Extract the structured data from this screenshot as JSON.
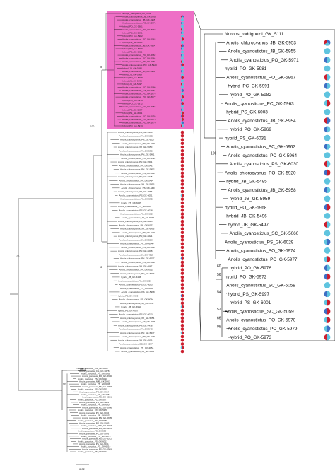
{
  "colors": {
    "red": "#cc1f2f",
    "blue": "#3f6fc4",
    "cyan": "#5fc4df",
    "highlight": "#ee6fc6",
    "branch": "#111111"
  },
  "tree_labels": {
    "root_support": "100",
    "clade_support": "100",
    "inner_support": "98",
    "porcatus_support": "100",
    "porcatus_inner": "99",
    "highlight_support": "98"
  },
  "scale_bar": "0.02",
  "highlight_clade": [
    {
      "label": "Norops_rodriguezii_GK_5111",
      "pie": null
    },
    {
      "label": "Anolis_chlorocyanus_JB_GK-5953",
      "pie": [
        "blue",
        "cyan",
        "red"
      ]
    },
    {
      "label": "Anolis_cyanostictus_JB_GK-5955",
      "pie": [
        "cyan"
      ]
    },
    {
      "label": "Anolis_cyanostictus_PO_GK-5971",
      "pie": [
        "cyan",
        "blue"
      ]
    },
    {
      "label": "hybrid_PO_GK-5981",
      "pie": [
        "cyan"
      ]
    },
    {
      "label": "Anolis_cyanostictus_PO_GK-5967",
      "pie": [
        "cyan",
        "red"
      ]
    },
    {
      "label": "hybrid_PC_GK-5991",
      "pie": [
        "cyan",
        "blue"
      ]
    },
    {
      "label": "hybrid_PO_GK-5982",
      "pie": [
        "cyan"
      ]
    },
    {
      "label": "Anolis_cyanostictus_PC_GK-5963",
      "pie": [
        "red",
        "cyan"
      ]
    },
    {
      "label": "hybrid_PS_GK-6003",
      "pie": [
        "cyan"
      ]
    },
    {
      "label": "Anolis_cyanostictus_JB_GK-5954",
      "pie": [
        "blue",
        "red"
      ]
    },
    {
      "label": "hybrid_PO_GK-5969",
      "pie": [
        "cyan",
        "blue"
      ]
    },
    {
      "label": "hybrid_PS_GK-6031",
      "pie": [
        "cyan"
      ]
    },
    {
      "label": "Anolis_cyanostictus_PC_GK-5962",
      "pie": [
        "cyan",
        "blue"
      ]
    },
    {
      "label": "Anolis_cyanostictus_PC_GK-5964",
      "pie": [
        "cyan"
      ]
    },
    {
      "label": "Anolis_cyanostictus_PS_GK-6030",
      "pie": [
        "cyan",
        "red"
      ]
    },
    {
      "label": "Anolis_chlorocyanus_PO_GK-5920",
      "pie": [
        "red",
        "blue"
      ]
    },
    {
      "label": "hybrid_JB_GK-5495",
      "pie": [
        "cyan"
      ]
    },
    {
      "label": "Anolis_cyanostictus_JB_GK-5958",
      "pie": [
        "cyan",
        "blue"
      ]
    },
    {
      "label": "hybrid_JB_GK-5959",
      "pie": [
        "cyan"
      ]
    },
    {
      "label": "hybrid_PO_GK-5968",
      "pie": [
        "red",
        "blue"
      ]
    },
    {
      "label": "hybrid_JB_GK-5496",
      "pie": [
        "cyan"
      ]
    },
    {
      "label": "hybrid_JB_GK-5497",
      "pie": [
        "cyan",
        "red"
      ]
    },
    {
      "label": "Anolis_cyanostictus_SC_GK-5060",
      "pie": [
        "cyan"
      ]
    },
    {
      "label": "Anolis_cyanostictus_PS_GK-6029",
      "pie": [
        "blue",
        "cyan"
      ]
    },
    {
      "label": "Anolis_cyanostictus_PO_GK-5974",
      "pie": [
        "cyan"
      ]
    },
    {
      "label": "Anolis_cyanostictus_PO_GK-5977",
      "pie": [
        "red",
        "cyan"
      ]
    },
    {
      "label": "hybrid_PO_GK-5976",
      "pie": [
        "cyan",
        "blue"
      ]
    },
    {
      "label": "hybrid_PO_GK-5972",
      "pie": [
        "red",
        "blue"
      ]
    },
    {
      "label": "Anolis_cyanostictus_SC_GK-5058",
      "pie": [
        "cyan"
      ]
    },
    {
      "label": "hybrid_PS_GK-5997",
      "pie": [
        "cyan",
        "blue"
      ]
    },
    {
      "label": "hybrid_PS_GK-6001",
      "pie": [
        "red",
        "cyan"
      ]
    },
    {
      "label": "Anolis_cyanostictus_SC_GK-5059",
      "pie": [
        "red",
        "blue"
      ]
    },
    {
      "label": "Anolis_cyanostictus_PO_GK-5970",
      "pie": [
        "red",
        "cyan"
      ]
    },
    {
      "label": "Anolis_cyanostictus_PO_GK-5979",
      "pie": [
        "blue",
        "cyan"
      ]
    },
    {
      "label": "hybrid_PO_GK-5973",
      "pie": [
        "cyan",
        "red"
      ]
    }
  ],
  "zoom_nodes": [
    {
      "label": "100",
      "row": 14
    },
    {
      "label": "60",
      "row": 27
    },
    {
      "label": "56",
      "row": 28
    },
    {
      "label": "54",
      "row": 30
    },
    {
      "label": "52",
      "row": 32
    },
    {
      "label": "66",
      "row": 33
    },
    {
      "label": "99",
      "row": 34
    }
  ],
  "chlorocyanus_clade": [
    {
      "label": "Anolis_chlorocyanus_PN_GK-5490",
      "pie": [
        "red"
      ]
    },
    {
      "label": "Anolis_chlorocyanus_PN_GK-6028",
      "pie": [
        "red"
      ]
    },
    {
      "label": "Anolis_chlorocyanus_PN_GK-6027",
      "pie": [
        "red"
      ]
    },
    {
      "label": "Anolis_chlorocyanus_PN_GK-6026",
      "pie": [
        "red"
      ]
    },
    {
      "label": "Anolis_chlorocyanus_XX_GK-5950",
      "pie": [
        "red"
      ]
    },
    {
      "label": "Anolis_chlorocyanus_PN_GK-5961",
      "pie": [
        "red"
      ]
    },
    {
      "label": "Anolis_chlorocyanus_PN_GK-5461",
      "pie": [
        "red"
      ]
    },
    {
      "label": "Anolis_chlorocyanus_PO_GK-4726",
      "pie": [
        "red"
      ]
    },
    {
      "label": "Anolis_chlorocyanus_PN_GK-5501",
      "pie": [
        "red"
      ]
    },
    {
      "label": "Anolis_chlorocyanus_PN_GK-5491",
      "pie": [
        "red"
      ]
    },
    {
      "label": "Anolis_chlorocyanus_PN_GK-5492",
      "pie": [
        "red"
      ]
    },
    {
      "label": "Anolis_chlorocyanus_PN_GK-6024",
      "pie": [
        "red"
      ]
    },
    {
      "label": "Anolis_chlorocyanus_PN_GK-6025",
      "pie": [
        "red"
      ]
    },
    {
      "label": "Anolis_chlorocyanus_PN_GK-5494",
      "pie": [
        "red"
      ]
    },
    {
      "label": "Anolis_chlorocyanus_XX_GK-5493",
      "pie": [
        "red"
      ]
    },
    {
      "label": "Anolis_chlorocyanus_PS_GK-5451",
      "pie": [
        "red"
      ]
    },
    {
      "label": "Anolis_chlorocyanus_XX_GK-4883",
      "pie": [
        "red"
      ]
    },
    {
      "label": "Anolis_cyanostictus_PS_GK-6051",
      "pie": [
        "red",
        "cyan"
      ]
    },
    {
      "label": "Anolis_cyanostictus_PS_GK-5953",
      "pie": [
        "red"
      ]
    },
    {
      "label": "hybrid_PS_GK-6005",
      "pie": [
        "red"
      ]
    },
    {
      "label": "Anolis_cyanostictus_PS_GK-6054",
      "pie": [
        "red"
      ]
    },
    {
      "label": "Anolis_cyanostictus_PS_GK-6038",
      "pie": [
        "red"
      ]
    },
    {
      "label": "Anolis_cyanostictus_PS_GK-6036",
      "pie": [
        "red"
      ]
    },
    {
      "label": "Anolis_cyanostictus_JB_GK-5975",
      "pie": [
        "red"
      ]
    },
    {
      "label": "Anolis_chlorocyanus_PN_GK-6023",
      "pie": [
        "red"
      ]
    },
    {
      "label": "Anolis_chlorocyanus_PN_GK-6022",
      "pie": [
        "red"
      ]
    },
    {
      "label": "Anolis_chlorocyanus_XX_GK-6496",
      "pie": [
        "red"
      ]
    },
    {
      "label": "Anolis_chlorocyanus_PN_GK-5498",
      "pie": [
        "red"
      ]
    },
    {
      "label": "Anolis_chlorocyanus_PN_GK-6021",
      "pie": [
        "red"
      ]
    },
    {
      "label": "Anolis_chlorocyanus_XX_GK-5886",
      "pie": [
        "red"
      ]
    },
    {
      "label": "Anolis_cyanostictus_PN_GK-6040",
      "pie": [
        "red"
      ]
    },
    {
      "label": "Anolis_chlorocyanus_PN_GK-6019",
      "pie": [
        "red"
      ]
    },
    {
      "label": "Anolis_chlorocyanus_PN_GK-6018",
      "pie": [
        "red"
      ]
    },
    {
      "label": "Anolis_chlorocyanus_XX_GK-4915",
      "pie": [
        "red"
      ]
    },
    {
      "label": "Anolis_chlorocyanus_PN_GK-6017",
      "pie": [
        "red",
        "blue"
      ]
    },
    {
      "label": "Anolis_chlorocyanus_PN_GK-6016",
      "pie": [
        "red"
      ]
    },
    {
      "label": "Anolis_chlorocyanus_XX_GK-4887",
      "pie": [
        "red"
      ]
    },
    {
      "label": "Anolis_chlorocyanus_PN_GK-6015",
      "pie": [
        "red"
      ]
    },
    {
      "label": "Anolis_chlorocyanus_PN_GK-6014",
      "pie": [
        "red"
      ]
    },
    {
      "label": "hybrid_JB_GK-5486",
      "pie": [
        "red"
      ]
    },
    {
      "label": "Anolis_cyanostictus_PS_GK-6000",
      "pie": [
        "red"
      ]
    },
    {
      "label": "Anolis_cyanostictus_PS_GK-6003",
      "pie": [
        "red"
      ]
    },
    {
      "label": "Anolis_cyanostictus_PS_GK-6002",
      "pie": [
        "red"
      ]
    },
    {
      "label": "Anolis_cyanostictus_PS_GK-5998",
      "pie": [
        "red"
      ]
    },
    {
      "label": "hybrid_PS_GK-5999",
      "pie": [
        "red",
        "blue"
      ]
    },
    {
      "label": "Anolis_chlorocyanus_PS_GK-6034",
      "pie": [
        "red"
      ]
    },
    {
      "label": "Anolis_chlorocyanus_JB_GK-5957",
      "pie": [
        "red"
      ]
    },
    {
      "label": "hybrid_JB_GK-5960",
      "pie": [
        "red",
        "cyan"
      ]
    },
    {
      "label": "hybrid_PS_GK-6037",
      "pie": [
        "red"
      ]
    },
    {
      "label": "Anolis_cyanostictus_PS_GK-6033",
      "pie": [
        "red"
      ]
    },
    {
      "label": "Anolis_chlorocyanus_XX_GK-5054",
      "pie": [
        "red"
      ]
    },
    {
      "label": "Anolis_chlorocyanus_XX_GK-5055",
      "pie": [
        "red"
      ]
    },
    {
      "label": "Anolis_chlorocyanus_PN_GK-5478",
      "pie": [
        "red"
      ]
    },
    {
      "label": "Anolis_chlorocyanus_PN_GK-5480",
      "pie": [
        "red"
      ]
    },
    {
      "label": "Anolis_chlorocyanus_PN_GK-5477",
      "pie": [
        "red",
        "cyan"
      ]
    },
    {
      "label": "Anolis_chlorocyanus_PN_GK-5479",
      "pie": [
        "red"
      ]
    },
    {
      "label": "Anolis_chlorocyanus_XX_GK-4906",
      "pie": [
        "red"
      ]
    },
    {
      "label": "Anolis_cyanostictus_SC_GK-5057",
      "pie": [
        "red"
      ]
    },
    {
      "label": "Anolis_cyanostictus_PN_GK-4854",
      "pie": [
        "red",
        "cyan"
      ]
    },
    {
      "label": "Anolis_cyanostictus_JB_GK-5956",
      "pie": [
        "red"
      ]
    }
  ],
  "porcatus_clade": [
    "Anolis_porcatus_CG_GK-5680",
    "Anolis_porcatus_CG_GK-5678",
    "Anolis_porcatus_PC_GK-5992",
    "Anolis_porcatus_PO_GK-5980",
    "Anolis_porcatus_PS_GK-6010",
    "Anolis_porcatus_NJB_GK-5963",
    "Anolis_porcatus_PN_GK-6009",
    "Anolis_porcatus_PS_GK-6008",
    "Anolis_porcatus_PS_GK-5965",
    "Anolis_porcatus_PO_GK-5964",
    "Anolis_porcatus_XX_GK-4881",
    "Anolis_porcatus_PS_GK-6021",
    "Anolis_porcatus_PC_GK-5977",
    "Anolis_porcatus_PS_GK-5989",
    "Anolis_porcatus_PN_GK-6007",
    "Anolis_porcatus_PC_GK-5986",
    "Anolis_porcatus_XX_GK-5978",
    "Anolis_porcatus_PC_GK-6016",
    "Anolis_porcatus_PN_GK-6015",
    "Anolis_porcatus_PN_GK-5995",
    "Anolis_porcatus_PC_GK-5966",
    "Anolis_porcatus_PO_GK-5985",
    "Anolis_porcatus_NPS_GK-6004",
    "Anolis_porcatus_PS_GK-5996",
    "Anolis_porcatus_PS_GK-5994",
    "Anolis_porcatus_PC_GK-5976",
    "Anolis_porcatus_PO_GK-5973",
    "Anolis_porcatus_PS_GK-6012",
    "Anolis_porcatus_PS_GK-6013",
    "Anolis_porcatus_PS_GK-6011",
    "Anolis_porcatus_PO_GK-6014",
    "Anolis_porcatus_PS_GK-5999",
    "Anolis_porcatus_PS_GK-6007"
  ]
}
